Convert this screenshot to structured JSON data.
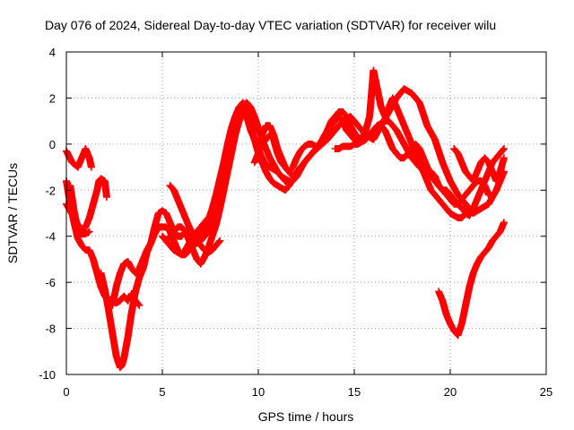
{
  "chart_data": {
    "type": "scatter",
    "title": "Day 076 of 2024, Sidereal Day-to-day VTEC variation (SDTVAR) for receiver wilu",
    "xlabel": "GPS time / hours",
    "ylabel": "SDTVAR / TECUs",
    "xlim": [
      0,
      25
    ],
    "ylim": [
      -10,
      4
    ],
    "xticks": [
      0,
      5,
      10,
      15,
      20,
      25
    ],
    "yticks": [
      -10,
      -8,
      -6,
      -4,
      -2,
      0,
      2,
      4
    ],
    "xtick_labels": [
      "0",
      "5",
      "10",
      "15",
      "20",
      "25"
    ],
    "ytick_labels": [
      "-10",
      "-8",
      "-6",
      "-4",
      "-2",
      "0",
      "2",
      "4"
    ],
    "grid": true,
    "marker": "+",
    "color": "#ff0000",
    "series": [
      {
        "x": [
          0.0,
          0.3,
          0.6,
          0.8,
          1.0,
          1.2,
          1.3
        ],
        "y": [
          -0.3,
          -0.8,
          -1.0,
          -0.6,
          -0.2,
          -0.6,
          -1.0
        ]
      },
      {
        "x": [
          0.0,
          0.2,
          0.4,
          0.6,
          0.8,
          1.0,
          1.2,
          1.4,
          1.6,
          1.8,
          2.0,
          2.2,
          2.4,
          2.6,
          2.8,
          3.0,
          3.2,
          3.4,
          3.6,
          3.8
        ],
        "y": [
          -1.6,
          -2.6,
          -3.4,
          -4.1,
          -4.4,
          -4.6,
          -4.6,
          -5.0,
          -5.6,
          -6.2,
          -6.6,
          -6.8,
          -6.7,
          -6.9,
          -6.8,
          -6.6,
          -6.8,
          -6.5,
          -6.8,
          -7.0
        ]
      },
      {
        "x": [
          0.0,
          0.2,
          0.4,
          0.6,
          0.8,
          1.0,
          1.2,
          1.4,
          1.6,
          1.7,
          1.8,
          2.0,
          2.1
        ],
        "y": [
          -2.6,
          -2.9,
          -3.2,
          -3.5,
          -3.7,
          -3.6,
          -3.2,
          -2.6,
          -2.0,
          -1.6,
          -1.5,
          -1.6,
          -2.3
        ]
      },
      {
        "x": [
          0.2,
          0.4,
          0.6,
          0.8,
          1.0,
          1.2
        ],
        "y": [
          -1.8,
          -2.9,
          -3.7,
          -3.9,
          -3.9,
          -3.8
        ]
      },
      {
        "x": [
          1.8,
          2.0,
          2.2,
          2.4,
          2.6,
          2.8,
          2.9,
          3.0,
          3.2,
          3.4,
          3.6,
          3.8,
          4.0,
          4.2,
          4.4,
          4.6,
          4.8,
          5.0,
          5.2,
          5.4,
          5.6,
          5.8,
          6.0,
          6.2,
          6.4,
          6.6,
          6.8,
          7.0,
          7.2,
          7.4,
          7.6,
          7.8
        ],
        "y": [
          -5.6,
          -6.3,
          -7.2,
          -8.2,
          -9.2,
          -9.7,
          -9.6,
          -9.3,
          -8.4,
          -7.3,
          -6.4,
          -5.8,
          -5.4,
          -4.7,
          -4.3,
          -3.9,
          -3.6,
          -3.6,
          -3.6,
          -3.8,
          -4.2,
          -4.6,
          -4.8,
          -4.6,
          -4.3,
          -4.0,
          -3.8,
          -3.6,
          -3.4,
          -3.2,
          -3.1,
          -3.2
        ]
      },
      {
        "x": [
          2.4,
          2.6,
          2.8,
          3.0,
          3.2,
          3.4,
          3.6,
          3.8,
          4.0,
          4.2,
          4.4,
          4.6,
          4.8,
          5.0,
          5.2,
          5.4,
          5.6,
          5.8,
          6.0,
          6.2,
          6.4,
          6.6,
          6.8,
          7.0,
          7.2,
          7.4,
          7.6,
          7.8,
          8.0
        ],
        "y": [
          -7.0,
          -6.2,
          -5.6,
          -5.2,
          -5.1,
          -5.4,
          -5.6,
          -5.4,
          -5.0,
          -4.6,
          -4.3,
          -3.6,
          -3.0,
          -2.9,
          -3.0,
          -3.4,
          -3.8,
          -4.0,
          -4.0,
          -3.8,
          -3.9,
          -4.1,
          -4.2,
          -4.4,
          -4.6,
          -4.7,
          -4.6,
          -4.4,
          -4.2
        ]
      },
      {
        "x": [
          5.0,
          5.2,
          5.4,
          5.6,
          5.8,
          6.0,
          6.2,
          6.4,
          6.6,
          6.8,
          7.0,
          7.2,
          7.4,
          7.6,
          7.8,
          8.0,
          8.2,
          8.4,
          8.6,
          8.8,
          9.0,
          9.2,
          9.4,
          9.6,
          9.8,
          10.0,
          10.2,
          10.4,
          10.6,
          10.8,
          11.0,
          11.2,
          11.4,
          11.6,
          11.8
        ],
        "y": [
          -4.0,
          -4.2,
          -4.4,
          -4.6,
          -4.7,
          -4.8,
          -4.8,
          -4.6,
          -4.4,
          -4.3,
          -4.2,
          -4.0,
          -3.8,
          -3.6,
          -3.2,
          -2.6,
          -1.6,
          -0.6,
          0.4,
          1.2,
          1.6,
          1.8,
          1.4,
          0.8,
          0.2,
          -0.4,
          -0.8,
          -1.2,
          -1.5,
          -1.7,
          -1.8,
          -1.9,
          -2.0,
          -1.8,
          -1.5
        ]
      },
      {
        "x": [
          5.2,
          5.4,
          5.6,
          5.8,
          6.0,
          6.2,
          6.4,
          6.6,
          6.8,
          7.0,
          7.2,
          7.4,
          7.6,
          7.8,
          8.0,
          8.2,
          8.4,
          8.6,
          8.8,
          9.0,
          9.2,
          9.4,
          9.6,
          9.8,
          10.0,
          10.2,
          10.4,
          10.6,
          10.8,
          11.0,
          11.2,
          11.4,
          11.6
        ],
        "y": [
          -4.2,
          -4.0,
          -3.8,
          -3.6,
          -3.6,
          -3.8,
          -4.2,
          -4.6,
          -5.0,
          -5.2,
          -4.9,
          -4.5,
          -4.0,
          -3.5,
          -2.8,
          -2.0,
          -1.2,
          -0.4,
          0.4,
          1.0,
          1.4,
          1.2,
          0.6,
          0.2,
          -0.2,
          -0.6,
          -0.9,
          -1.0,
          -1.1,
          -1.2,
          -1.4,
          -1.5,
          -1.6
        ]
      },
      {
        "x": [
          5.4,
          5.6,
          5.8,
          6.0,
          6.2,
          6.4,
          6.6,
          6.8,
          7.0,
          7.2,
          7.4,
          7.6,
          7.8,
          8.0,
          8.2,
          8.4,
          8.6,
          8.8,
          9.0,
          9.2,
          9.4,
          9.6,
          9.8,
          10.0,
          10.2,
          10.4,
          10.6,
          10.8,
          11.0,
          11.2,
          11.4,
          11.6,
          11.8,
          12.0
        ],
        "y": [
          -1.8,
          -2.0,
          -2.4,
          -2.8,
          -3.2,
          -3.6,
          -3.9,
          -4.1,
          -4.0,
          -3.7,
          -3.3,
          -2.8,
          -2.2,
          -1.5,
          -0.8,
          0.0,
          0.7,
          1.2,
          1.5,
          1.7,
          1.8,
          1.6,
          1.2,
          0.7,
          0.2,
          -0.2,
          -0.6,
          -0.9,
          -1.2,
          -1.4,
          -1.6,
          -1.7,
          -1.6,
          -1.4
        ]
      },
      {
        "x": [
          9.8,
          10.0,
          10.2,
          10.4,
          10.6,
          10.8,
          11.0,
          11.2,
          11.4,
          11.6,
          11.8,
          12.0,
          12.2,
          12.4,
          12.6,
          12.8,
          13.0,
          13.2,
          13.4,
          13.6,
          13.8,
          14.0,
          14.2,
          14.4,
          14.6,
          14.8,
          15.0,
          15.2,
          15.4,
          15.6,
          15.8,
          16.0,
          16.2,
          16.4,
          16.6,
          16.8,
          17.0,
          17.2,
          17.4,
          17.6,
          17.8,
          18.0,
          18.2,
          18.4,
          18.6,
          18.8,
          19.0,
          19.2,
          19.4,
          19.6,
          19.8,
          20.0,
          20.2,
          20.4,
          20.6,
          20.8,
          21.0,
          21.2,
          21.4,
          21.6,
          21.8,
          22.0
        ],
        "y": [
          -0.8,
          -0.4,
          0.0,
          0.2,
          0.4,
          0.2,
          -0.4,
          -0.8,
          -1.0,
          -1.2,
          -1.4,
          -1.2,
          -1.0,
          -0.8,
          -0.6,
          -0.4,
          -0.2,
          0.0,
          0.3,
          0.6,
          1.0,
          1.2,
          1.4,
          1.4,
          1.2,
          0.8,
          0.5,
          0.3,
          0.2,
          0.2,
          0.4,
          0.6,
          0.8,
          0.9,
          1.0,
          1.0,
          0.8,
          0.6,
          0.3,
          0.0,
          -0.3,
          -0.6,
          -0.8,
          -1.0,
          -1.1,
          -1.2,
          -1.2,
          -1.4,
          -1.8,
          -2.0,
          -2.2,
          -2.4,
          -2.6,
          -2.6,
          -2.4,
          -2.2,
          -2.0,
          -1.8,
          -1.6,
          -1.6,
          -1.8,
          -2.2
        ]
      },
      {
        "x": [
          10.0,
          10.2,
          10.4,
          10.6,
          10.8,
          11.0,
          11.2,
          11.4,
          11.6,
          11.8,
          12.0,
          12.2,
          12.4,
          12.6,
          12.8,
          13.0,
          13.2,
          13.4,
          13.6,
          13.8,
          14.0,
          14.2,
          14.4,
          14.6,
          14.8,
          15.0,
          15.2,
          15.4,
          15.6,
          15.8,
          16.0,
          16.2,
          16.4,
          16.6,
          16.8,
          17.0,
          17.2,
          17.4,
          17.6,
          17.8,
          18.0,
          18.2,
          18.4,
          18.6,
          18.8,
          19.0,
          19.2,
          19.4,
          19.6,
          19.8,
          20.0,
          20.2,
          20.4,
          20.6,
          20.8,
          21.0,
          21.2
        ],
        "y": [
          -0.2,
          0.4,
          0.8,
          0.8,
          0.4,
          -0.2,
          -0.6,
          -1.0,
          -1.2,
          -1.0,
          -0.6,
          -0.3,
          -0.1,
          0.0,
          0.0,
          -0.1,
          0.0,
          0.2,
          0.5,
          0.8,
          1.0,
          1.2,
          1.0,
          0.6,
          0.4,
          0.2,
          0.1,
          0.2,
          0.6,
          1.2,
          3.2,
          2.4,
          1.6,
          1.2,
          1.6,
          2.0,
          1.6,
          1.2,
          0.8,
          0.4,
          0.0,
          -0.4,
          -0.8,
          -1.2,
          -1.6,
          -2.0,
          -2.2,
          -2.4,
          -2.6,
          -2.8,
          -3.0,
          -3.1,
          -3.2,
          -3.2,
          -3.0,
          -3.1,
          -2.8
        ]
      },
      {
        "x": [
          12.0,
          12.4,
          12.8,
          13.2,
          13.6,
          14.0,
          14.4,
          14.8,
          15.2,
          15.6,
          16.0,
          16.4,
          16.8,
          17.2,
          17.6,
          18.0,
          18.4,
          18.8,
          19.2,
          19.6,
          20.0,
          20.4,
          20.8,
          21.2,
          21.6,
          22.0,
          22.4,
          22.8
        ],
        "y": [
          -1.4,
          -0.8,
          -0.4,
          -0.1,
          0.2,
          0.6,
          1.0,
          1.2,
          0.8,
          0.4,
          0.2,
          0.8,
          1.4,
          2.0,
          2.4,
          2.2,
          1.8,
          0.8,
          0.2,
          -0.8,
          -1.6,
          -2.2,
          -2.6,
          -3.0,
          -2.8,
          -2.6,
          -2.0,
          -1.2
        ]
      },
      {
        "x": [
          14.0,
          14.2,
          14.4,
          14.6,
          14.8,
          15.0,
          15.2,
          15.4,
          15.6,
          15.8,
          16.0,
          16.2,
          16.4,
          16.6,
          16.8,
          17.0,
          17.2,
          17.4,
          17.6,
          17.8,
          18.0,
          18.2,
          18.4,
          18.6,
          18.8,
          19.0,
          19.2,
          19.4,
          19.6,
          19.8,
          20.0,
          20.2,
          20.4,
          20.6,
          20.8,
          21.0,
          21.2,
          21.4,
          21.6,
          21.8,
          22.0,
          22.2,
          22.4,
          22.6,
          22.8
        ],
        "y": [
          -0.2,
          -0.2,
          -0.1,
          -0.1,
          -0.1,
          0.0,
          0.0,
          0.1,
          0.2,
          0.4,
          0.6,
          0.8,
          0.8,
          0.6,
          0.2,
          -0.2,
          -0.4,
          -0.6,
          -0.6,
          -0.4,
          -0.2,
          0.0,
          -0.2,
          -0.6,
          -1.0,
          -1.4,
          -1.6,
          -1.8,
          -2.0,
          -2.0,
          -2.2,
          -2.4,
          -2.6,
          -2.8,
          -2.9,
          -3.0,
          -2.8,
          -2.4,
          -2.0,
          -1.6,
          -1.2,
          -0.8,
          -0.6,
          -0.4,
          -0.2
        ]
      },
      {
        "x": [
          20.2,
          20.4,
          20.6,
          20.8,
          21.0,
          21.2,
          21.4,
          21.6,
          21.8,
          22.0,
          22.2,
          22.4,
          22.6,
          22.8
        ],
        "y": [
          -0.2,
          -0.4,
          -0.8,
          -1.2,
          -1.4,
          -1.6,
          -1.2,
          -0.8,
          -0.6,
          -0.8,
          -1.2,
          -1.6,
          -1.2,
          -0.6
        ]
      },
      {
        "x": [
          19.4,
          19.6,
          19.8,
          20.0,
          20.2,
          20.4,
          20.6,
          20.8,
          21.0,
          21.2,
          21.4,
          21.6,
          21.8,
          22.0,
          22.2,
          22.4,
          22.6,
          22.8
        ],
        "y": [
          -6.4,
          -6.8,
          -7.4,
          -7.8,
          -8.1,
          -8.3,
          -7.8,
          -7.0,
          -6.2,
          -5.6,
          -5.2,
          -4.9,
          -4.7,
          -4.5,
          -4.2,
          -4.0,
          -3.8,
          -3.4
        ]
      }
    ]
  }
}
